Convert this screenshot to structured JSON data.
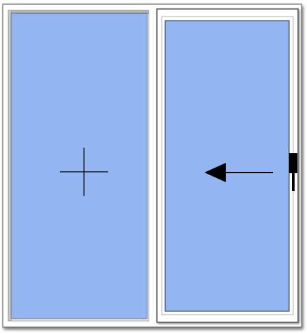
{
  "diagram": {
    "panels": [
      {
        "id": "left",
        "type": "fixed",
        "symbol": "crosshair"
      },
      {
        "id": "right",
        "type": "sliding",
        "symbol": "arrow-left",
        "has_handle": true
      }
    ],
    "colors": {
      "frame": "#ffffff",
      "frame_shadow": "#8a8a8a",
      "frame_outline": "#5a5a5a",
      "glass": "#93b6f2",
      "glass_edge": "#4a5a80",
      "symbol": "#000000",
      "handle": "#000000"
    }
  }
}
